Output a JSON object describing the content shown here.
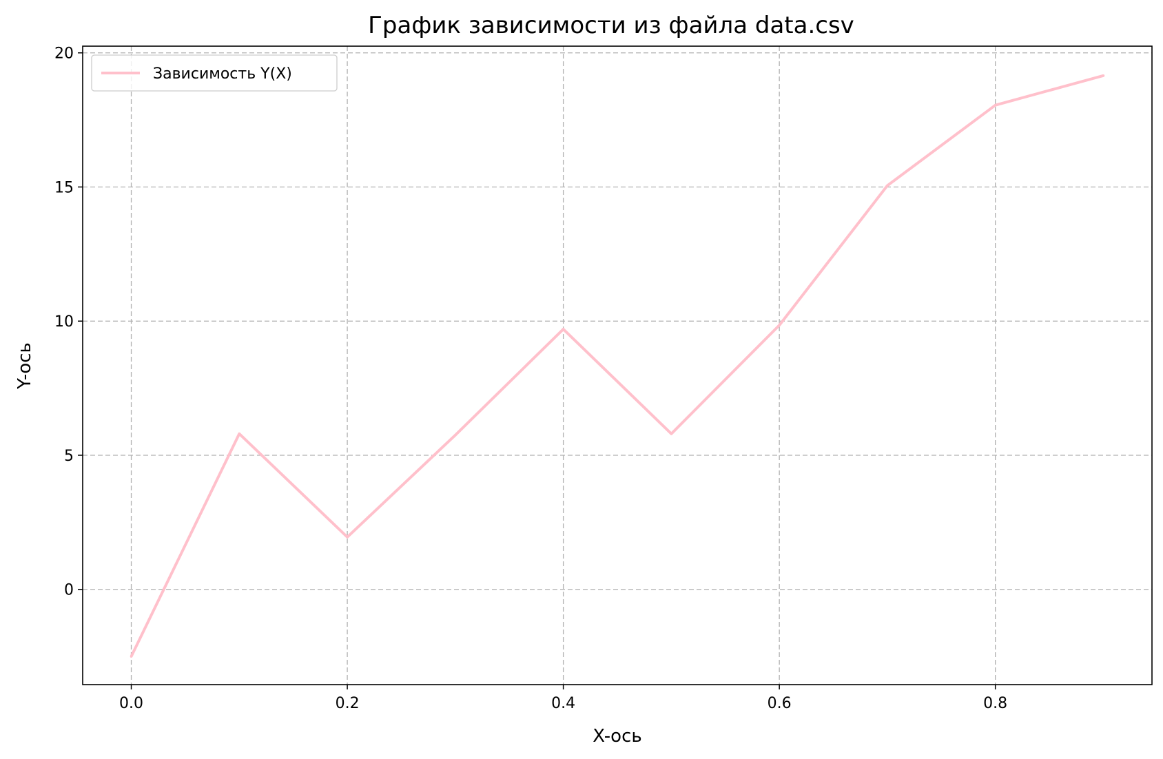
{
  "chart_data": {
    "type": "line",
    "title": "График зависимости из файла data.csv",
    "xlabel": "X-ось",
    "ylabel": "Y-ось",
    "xlim": [
      -0.045,
      0.945
    ],
    "ylim": [
      -3.55,
      20.25
    ],
    "xticks": [
      0.0,
      0.2,
      0.4,
      0.6,
      0.8
    ],
    "xtick_labels": [
      "0.0",
      "0.2",
      "0.4",
      "0.6",
      "0.8"
    ],
    "yticks": [
      0,
      5,
      10,
      15,
      20
    ],
    "ytick_labels": [
      "0",
      "5",
      "10",
      "15",
      "20"
    ],
    "grid": true,
    "legend_position": "top-left",
    "series": [
      {
        "name": "Зависимость Y(X)",
        "color": "#ffc0cb",
        "x": [
          0.0,
          0.1,
          0.2,
          0.3,
          0.4,
          0.5,
          0.6,
          0.7,
          0.8,
          0.9
        ],
        "y": [
          -2.5,
          5.8,
          1.95,
          5.75,
          9.7,
          5.8,
          9.85,
          15.05,
          18.05,
          19.15
        ]
      }
    ]
  }
}
